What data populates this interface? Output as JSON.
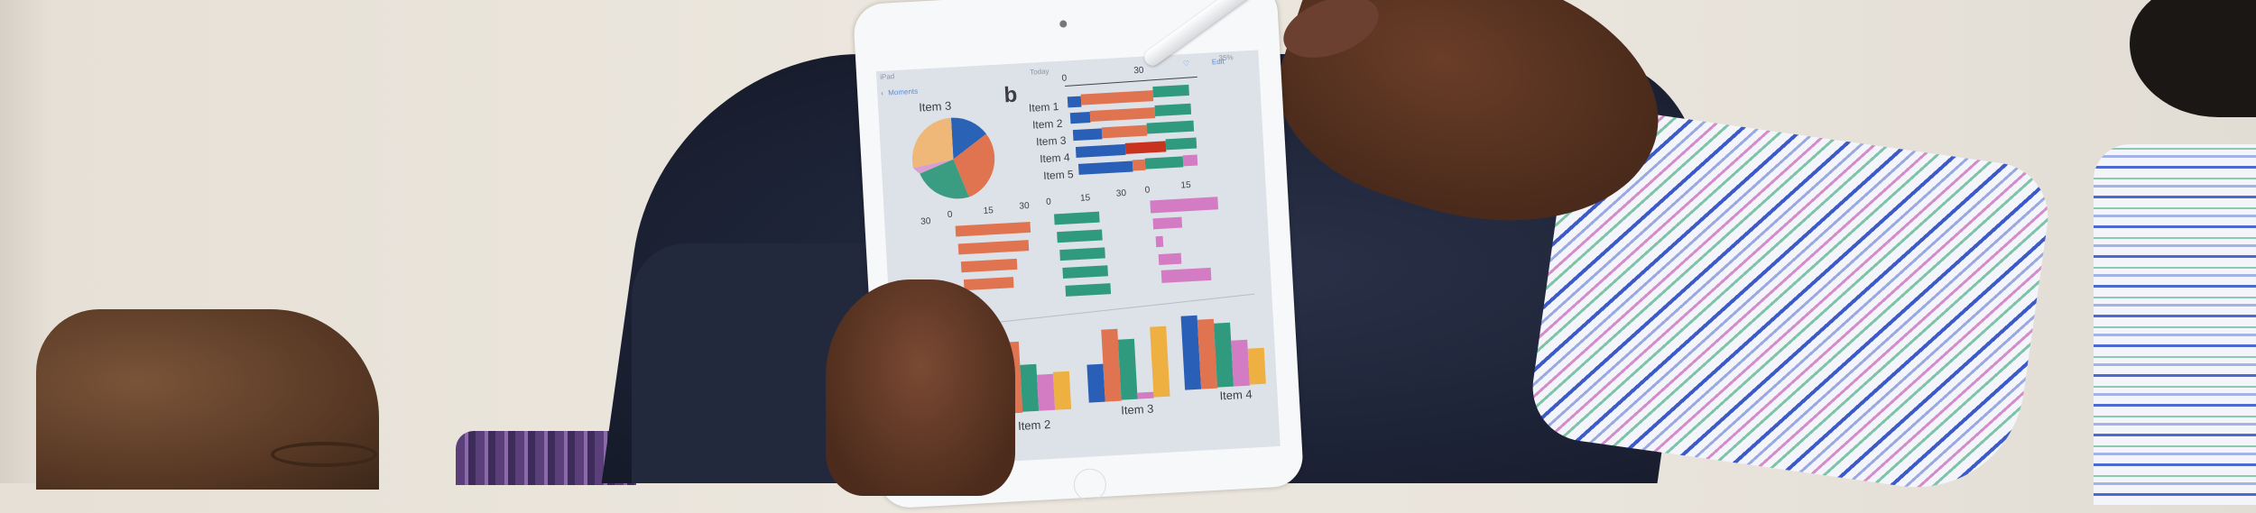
{
  "tablet": {
    "status": {
      "carrier": "iPad",
      "battery": "35%"
    },
    "nav": {
      "back_label": "Moments",
      "title": "Today",
      "edit_label": "Edit"
    },
    "screen": {
      "heading": "b",
      "pie_label": "Item 3",
      "stacked_chart": {
        "ticks": [
          "0",
          "30"
        ],
        "items": [
          "Item 1",
          "Item 2",
          "Item 3",
          "Item 4",
          "Item 5"
        ]
      },
      "small_charts": {
        "partial_tick": "30",
        "chart_a_ticks": [
          "0",
          "15",
          "30"
        ],
        "chart_b_ticks": [
          "0",
          "15",
          "30"
        ],
        "chart_c_ticks": [
          "0",
          "15"
        ]
      },
      "grouped_chart": {
        "labels": [
          "Item 2",
          "Item 3",
          "Item 4"
        ]
      }
    }
  },
  "colors": {
    "blue": "#2a5fb8",
    "orange": "#e07350",
    "green": "#2f9a7e",
    "pink": "#d37cc4",
    "yellow": "#eeb040",
    "peach": "#f0b878"
  }
}
